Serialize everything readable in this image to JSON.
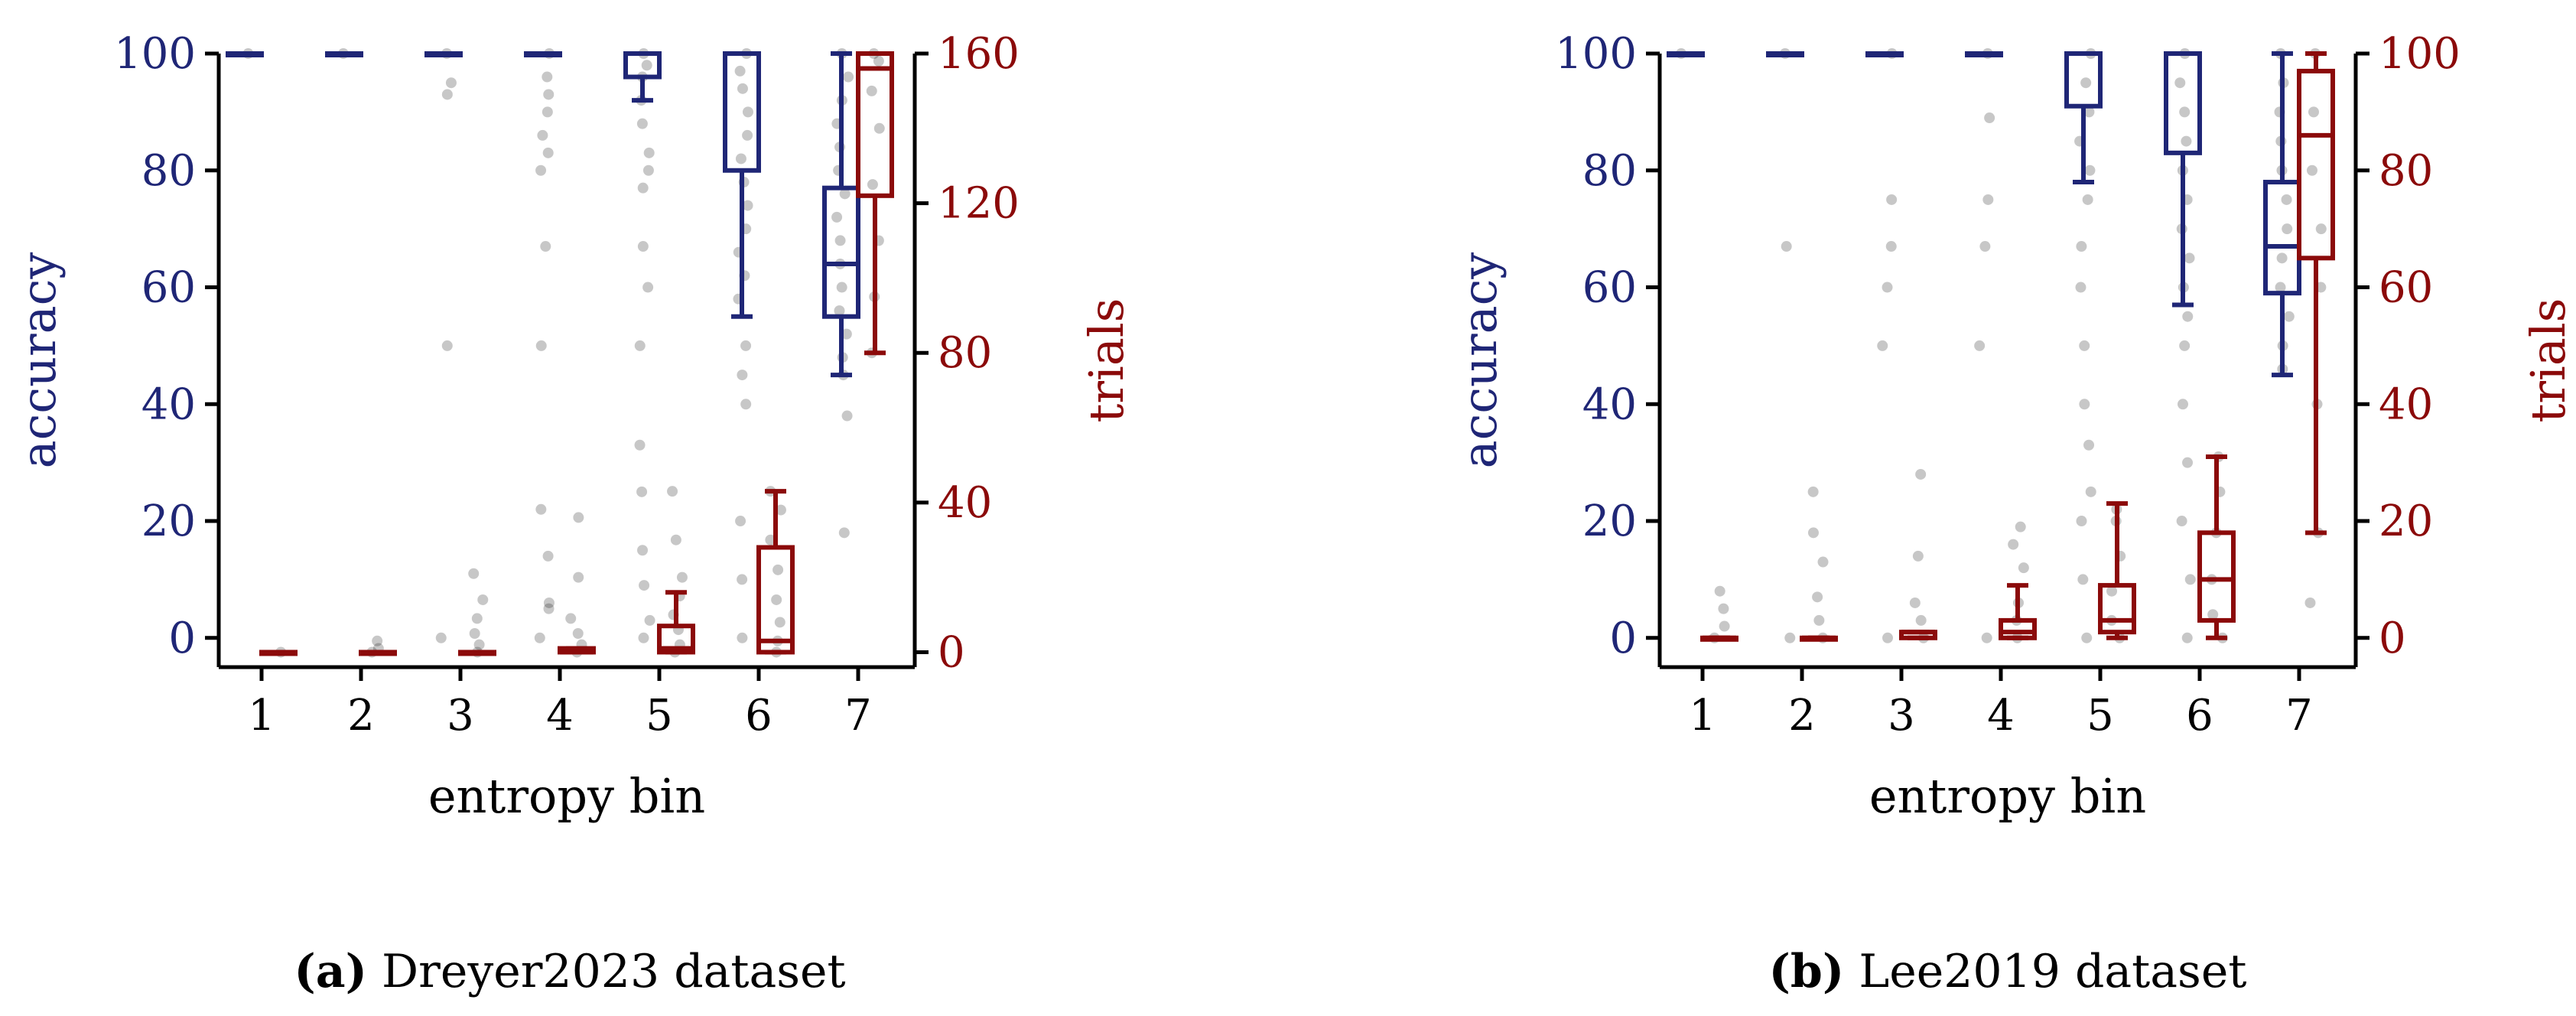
{
  "colors": {
    "accuracy": "#1f2676",
    "trials": "#8b0a0a",
    "points": "#000000",
    "axis": "#000000"
  },
  "chart_data": [
    {
      "type": "box",
      "caption_tag": "(a)",
      "caption_text": "Dreyer2023 dataset",
      "xlabel": "entropy bin",
      "ylabel_left": "accuracy",
      "ylabel_right": "trials",
      "categories": [
        "1",
        "2",
        "3",
        "4",
        "5",
        "6",
        "7"
      ],
      "ylim_left": [
        -5,
        100
      ],
      "yticks_left": [
        0,
        20,
        40,
        60,
        80,
        100
      ],
      "ylim_right": [
        -4,
        160
      ],
      "yticks_right": [
        0,
        40,
        80,
        120,
        160
      ],
      "series": [
        {
          "name": "accuracy",
          "axis": "left",
          "boxes": [
            {
              "whislo": 100,
              "q1": 100,
              "med": 100,
              "q3": 100,
              "whishi": 100
            },
            {
              "whislo": 100,
              "q1": 100,
              "med": 100,
              "q3": 100,
              "whishi": 100
            },
            {
              "whislo": 100,
              "q1": 100,
              "med": 100,
              "q3": 100,
              "whishi": 100
            },
            {
              "whislo": 100,
              "q1": 100,
              "med": 100,
              "q3": 100,
              "whishi": 100
            },
            {
              "whislo": 92,
              "q1": 96,
              "med": 100,
              "q3": 100,
              "whishi": 100
            },
            {
              "whislo": 55,
              "q1": 80,
              "med": 100,
              "q3": 100,
              "whishi": 100
            },
            {
              "whislo": 45,
              "q1": 55,
              "med": 64,
              "q3": 77,
              "whishi": 100
            }
          ]
        },
        {
          "name": "trials",
          "axis": "right",
          "boxes": [
            {
              "whislo": 0,
              "q1": 0,
              "med": 0,
              "q3": 0,
              "whishi": 0
            },
            {
              "whislo": 0,
              "q1": 0,
              "med": 0,
              "q3": 0,
              "whishi": 0
            },
            {
              "whislo": 0,
              "q1": 0,
              "med": 0,
              "q3": 0,
              "whishi": 0
            },
            {
              "whislo": 0,
              "q1": 0,
              "med": 0,
              "q3": 1,
              "whishi": 1
            },
            {
              "whislo": 0,
              "q1": 0,
              "med": 1,
              "q3": 7,
              "whishi": 16
            },
            {
              "whislo": 0,
              "q1": 0,
              "med": 3,
              "q3": 28,
              "whishi": 43
            },
            {
              "whislo": 80,
              "q1": 122,
              "med": 156,
              "q3": 160,
              "whishi": 160
            }
          ]
        }
      ],
      "point_samples": {
        "accuracy": [
          [
            100
          ],
          [
            100
          ],
          [
            100,
            95,
            93,
            50,
            0
          ],
          [
            100,
            96,
            93,
            90,
            86,
            83,
            80,
            67,
            50,
            22,
            14,
            6,
            5,
            0
          ],
          [
            100,
            98,
            96,
            92,
            88,
            83,
            80,
            77,
            67,
            60,
            50,
            33,
            25,
            15,
            9,
            3,
            0
          ],
          [
            100,
            97,
            94,
            90,
            86,
            82,
            78,
            74,
            70,
            66,
            62,
            58,
            50,
            45,
            40,
            20,
            10,
            0
          ],
          [
            100,
            96,
            92,
            88,
            84,
            80,
            76,
            72,
            68,
            64,
            60,
            56,
            52,
            48,
            45,
            38,
            18
          ]
        ],
        "trials": [
          [
            0
          ],
          [
            0,
            1,
            3
          ],
          [
            0,
            2,
            5,
            9,
            14,
            21
          ],
          [
            0,
            2,
            5,
            9,
            20,
            36
          ],
          [
            0,
            2,
            6,
            10,
            15,
            20,
            30,
            43
          ],
          [
            0,
            3,
            8,
            14,
            22,
            30,
            38,
            43
          ],
          [
            80,
            95,
            110,
            125,
            140,
            150,
            158,
            160
          ]
        ]
      }
    },
    {
      "type": "box",
      "caption_tag": "(b)",
      "caption_text": "Lee2019 dataset",
      "xlabel": "entropy bin",
      "ylabel_left": "accuracy",
      "ylabel_right": "trials",
      "categories": [
        "1",
        "2",
        "3",
        "4",
        "5",
        "6",
        "7"
      ],
      "ylim_left": [
        -5,
        100
      ],
      "yticks_left": [
        0,
        20,
        40,
        60,
        80,
        100
      ],
      "ylim_right": [
        -5,
        100
      ],
      "yticks_right": [
        0,
        20,
        40,
        60,
        80,
        100
      ],
      "series": [
        {
          "name": "accuracy",
          "axis": "left",
          "boxes": [
            {
              "whislo": 100,
              "q1": 100,
              "med": 100,
              "q3": 100,
              "whishi": 100
            },
            {
              "whislo": 100,
              "q1": 100,
              "med": 100,
              "q3": 100,
              "whishi": 100
            },
            {
              "whislo": 100,
              "q1": 100,
              "med": 100,
              "q3": 100,
              "whishi": 100
            },
            {
              "whislo": 100,
              "q1": 100,
              "med": 100,
              "q3": 100,
              "whishi": 100
            },
            {
              "whislo": 78,
              "q1": 91,
              "med": 100,
              "q3": 100,
              "whishi": 100
            },
            {
              "whislo": 57,
              "q1": 83,
              "med": 100,
              "q3": 100,
              "whishi": 100
            },
            {
              "whislo": 45,
              "q1": 59,
              "med": 67,
              "q3": 78,
              "whishi": 100
            }
          ]
        },
        {
          "name": "trials",
          "axis": "right",
          "boxes": [
            {
              "whislo": 0,
              "q1": 0,
              "med": 0,
              "q3": 0,
              "whishi": 0
            },
            {
              "whislo": 0,
              "q1": 0,
              "med": 0,
              "q3": 0,
              "whishi": 0
            },
            {
              "whislo": 0,
              "q1": 0,
              "med": 1,
              "q3": 1,
              "whishi": 1
            },
            {
              "whislo": 0,
              "q1": 0,
              "med": 1,
              "q3": 3,
              "whishi": 9
            },
            {
              "whislo": 0,
              "q1": 1,
              "med": 3,
              "q3": 9,
              "whishi": 23
            },
            {
              "whislo": 0,
              "q1": 3,
              "med": 10,
              "q3": 18,
              "whishi": 31
            },
            {
              "whislo": 18,
              "q1": 65,
              "med": 86,
              "q3": 97,
              "whishi": 100
            }
          ]
        }
      ],
      "point_samples": {
        "accuracy": [
          [
            100
          ],
          [
            100,
            67,
            0
          ],
          [
            100,
            75,
            67,
            60,
            50,
            0
          ],
          [
            100,
            89,
            75,
            67,
            50,
            0
          ],
          [
            100,
            95,
            90,
            85,
            80,
            75,
            67,
            60,
            50,
            40,
            33,
            25,
            20,
            10,
            0
          ],
          [
            100,
            95,
            90,
            85,
            80,
            75,
            70,
            65,
            60,
            55,
            50,
            40,
            30,
            20,
            10,
            0
          ],
          [
            100,
            95,
            90,
            85,
            80,
            75,
            70,
            65,
            60,
            55,
            50,
            46
          ]
        ],
        "trials": [
          [
            0,
            2,
            5,
            8
          ],
          [
            0,
            3,
            7,
            13,
            18,
            25
          ],
          [
            0,
            3,
            6,
            14,
            28
          ],
          [
            0,
            3,
            6,
            12,
            16,
            19
          ],
          [
            0,
            3,
            8,
            14,
            20,
            22
          ],
          [
            0,
            4,
            10,
            18,
            25,
            31
          ],
          [
            18,
            40,
            60,
            70,
            80,
            90,
            100,
            6
          ]
        ]
      }
    }
  ]
}
